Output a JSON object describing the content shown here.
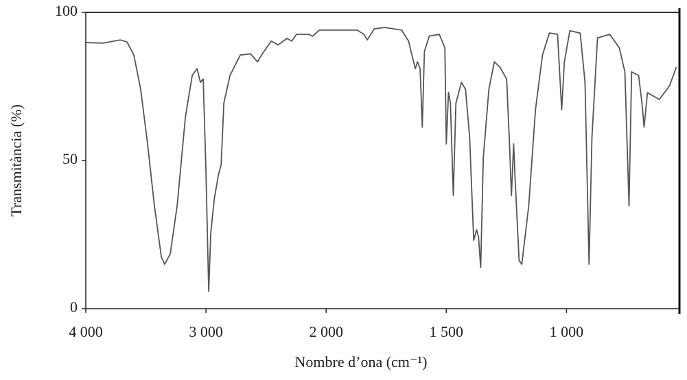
{
  "chart_data": {
    "type": "line",
    "xlabel": "Nombre d’ona (cm⁻¹)",
    "ylabel": "Transmitància (%)",
    "xlim": [
      4000,
      530
    ],
    "x_break": 2000,
    "xticks": [
      {
        "value": 4000,
        "label": "4 000"
      },
      {
        "value": 3000,
        "label": "3 000"
      },
      {
        "value": 2000,
        "label": "2 000"
      },
      {
        "value": 1500,
        "label": "1 500"
      },
      {
        "value": 1000,
        "label": "1 000"
      }
    ],
    "ylim": [
      0,
      100
    ],
    "yticks": [
      0,
      50,
      100
    ],
    "series": [
      {
        "name": "Transmitància",
        "color": "#555555",
        "x": [
          4000,
          3857,
          3714,
          3657,
          3600,
          3543,
          3486,
          3429,
          3371,
          3343,
          3297,
          3240,
          3171,
          3114,
          3074,
          3046,
          3023,
          3000,
          2977,
          2960,
          2931,
          2897,
          2874,
          2851,
          2800,
          2714,
          2629,
          2571,
          2531,
          2457,
          2400,
          2326,
          2286,
          2246,
          2143,
          2114,
          2057,
          1929,
          1871,
          1843,
          1829,
          1800,
          1757,
          1686,
          1657,
          1643,
          1629,
          1620,
          1609,
          1600,
          1591,
          1571,
          1529,
          1506,
          1500,
          1491,
          1483,
          1471,
          1460,
          1437,
          1420,
          1403,
          1386,
          1374,
          1366,
          1357,
          1346,
          1323,
          1300,
          1277,
          1249,
          1237,
          1229,
          1220,
          1214,
          1197,
          1186,
          1157,
          1129,
          1100,
          1071,
          1037,
          1020,
          1009,
          986,
          943,
          923,
          906,
          894,
          871,
          820,
          780,
          757,
          740,
          729,
          700,
          686,
          677,
          663,
          614,
          571,
          543
        ],
        "values": [
          89.8,
          89.6,
          90.7,
          90,
          85.6,
          74,
          55.6,
          34.7,
          17.4,
          15,
          18.5,
          34.7,
          64.8,
          78.7,
          81,
          76.4,
          77.5,
          46.3,
          5.8,
          25.5,
          37,
          45,
          48.6,
          69.4,
          78.7,
          85.6,
          86,
          83.3,
          86,
          90.3,
          89,
          91.2,
          90.3,
          92.6,
          92.6,
          91.9,
          94,
          94,
          94,
          92.6,
          90.7,
          94.4,
          94.9,
          94,
          90.3,
          85.6,
          81,
          83.3,
          81,
          61.3,
          86.8,
          92,
          92.6,
          88,
          55.6,
          73,
          69.4,
          38.2,
          69.4,
          76.4,
          74,
          57.9,
          23.1,
          26.6,
          24.3,
          13.9,
          50.9,
          74,
          83.3,
          81.5,
          77.5,
          55.6,
          38.2,
          55.6,
          44,
          16.2,
          15,
          34.7,
          67.1,
          85.6,
          93,
          92.6,
          67.1,
          83.3,
          93.8,
          93,
          76.4,
          15,
          57.9,
          91.4,
          92.6,
          88,
          79.9,
          34.7,
          79.9,
          78.7,
          69.4,
          61.3,
          72.9,
          70.6,
          75.2,
          81.5
        ]
      }
    ]
  }
}
